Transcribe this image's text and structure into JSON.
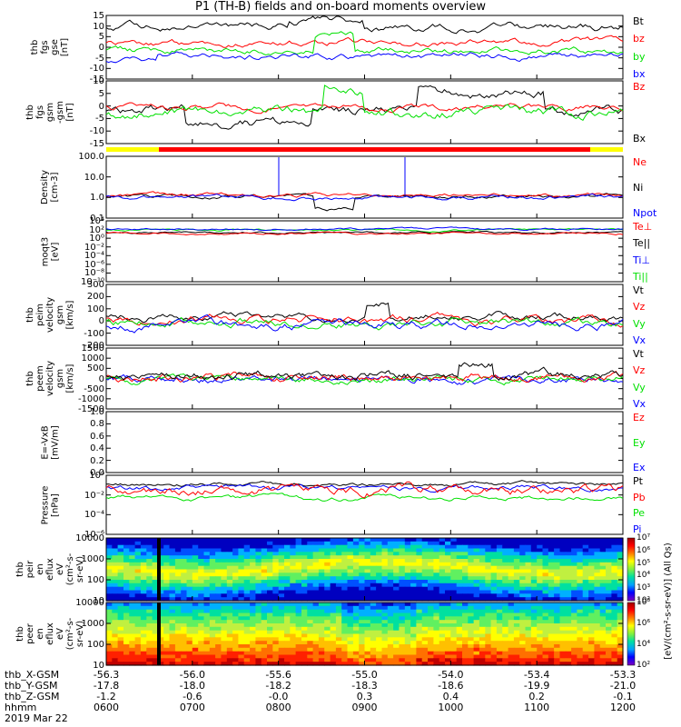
{
  "title": "P1 (TH-B) fields and on-board moments overview",
  "date": "2019 Mar 22",
  "colors": {
    "black": "#000000",
    "red": "#ff0000",
    "green": "#00e000",
    "blue": "#0000ff",
    "yellow": "#ffff00"
  },
  "panels": [
    {
      "id": "fgs-gse",
      "ylabel": [
        "thb",
        "fgs",
        "gse",
        "[nT]"
      ],
      "ticks": [
        "15",
        "10",
        "5",
        "0",
        "-5",
        "-10",
        "-15"
      ],
      "legend": [
        {
          "text": "Bt",
          "color": "#000000"
        },
        {
          "text": "bz",
          "color": "#ff0000"
        },
        {
          "text": "by",
          "color": "#00e000"
        },
        {
          "text": "bx",
          "color": "#0000ff"
        }
      ]
    },
    {
      "id": "fgs-gsm",
      "ylabel": [
        "thb",
        "fgs",
        "gsm",
        "-gsm",
        "[nT]"
      ],
      "ticks": [
        "10",
        "5",
        "0",
        "-5",
        "-10",
        "-15"
      ],
      "legend": [
        {
          "text": "Bz",
          "color": "#ff0000"
        },
        {
          "text": "Bx",
          "color": "#000000"
        }
      ]
    },
    {
      "id": "density",
      "ylabel": [
        "Density",
        "[cm-3]"
      ],
      "ticks": [
        "100.0",
        "10.0",
        "1.0",
        "0.1"
      ],
      "legend": [
        {
          "text": "Ne",
          "color": "#ff0000"
        },
        {
          "text": "Ni",
          "color": "#000000"
        },
        {
          "text": "Npot",
          "color": "#0000ff"
        }
      ]
    },
    {
      "id": "temp",
      "ylabel": [
        "moqt3",
        "[eV]"
      ],
      "ticks": [
        "10⁴",
        "10²",
        "10⁰",
        "10⁻²",
        "10⁻⁴",
        "10⁻⁶",
        "10⁻⁸",
        "10⁻¹⁰"
      ],
      "legend": [
        {
          "text": "Te⊥",
          "color": "#ff0000"
        },
        {
          "text": "Te||",
          "color": "#000000"
        },
        {
          "text": "Ti⊥",
          "color": "#0000ff"
        },
        {
          "text": "Ti||",
          "color": "#00e000"
        }
      ]
    },
    {
      "id": "peim",
      "ylabel": [
        "thb",
        "peim",
        "velocity",
        "gsm",
        "[km/s]"
      ],
      "ticks": [
        "300",
        "200",
        "100",
        "0",
        "-100",
        "-200"
      ],
      "legend": [
        {
          "text": "Vt",
          "color": "#000000"
        },
        {
          "text": "Vz",
          "color": "#ff0000"
        },
        {
          "text": "Vy",
          "color": "#00e000"
        },
        {
          "text": "Vx",
          "color": "#0000ff"
        }
      ]
    },
    {
      "id": "peem",
      "ylabel": [
        "thb",
        "peem",
        "velocity",
        "gsm",
        "[km/s]"
      ],
      "ticks": [
        "1500",
        "1000",
        "500",
        "0",
        "-500",
        "-1000",
        "-1500"
      ],
      "legend": [
        {
          "text": "Vt",
          "color": "#000000"
        },
        {
          "text": "Vz",
          "color": "#ff0000"
        },
        {
          "text": "Vy",
          "color": "#00e000"
        },
        {
          "text": "Vx",
          "color": "#0000ff"
        }
      ]
    },
    {
      "id": "efield",
      "ylabel": [
        "E=-VxB",
        "[mV/m]"
      ],
      "ticks": [
        "1.0",
        "0.8",
        "0.6",
        "0.4",
        "0.2",
        "0.0"
      ],
      "legend": [
        {
          "text": "Ez",
          "color": "#ff0000"
        },
        {
          "text": "Ey",
          "color": "#00e000"
        },
        {
          "text": "Ex",
          "color": "#0000ff"
        }
      ]
    },
    {
      "id": "pressure",
      "ylabel": [
        "Pressure",
        "[nPa]"
      ],
      "ticks": [
        "10⁰",
        "10⁻²",
        "10⁻⁴",
        "10⁻⁶"
      ],
      "legend": [
        {
          "text": "Pt",
          "color": "#000000"
        },
        {
          "text": "Pb",
          "color": "#ff0000"
        },
        {
          "text": "Pe",
          "color": "#00e000"
        },
        {
          "text": "Pi",
          "color": "#0000ff"
        }
      ]
    },
    {
      "id": "peir",
      "ylabel": [
        "thb",
        "peir",
        "en",
        "eflux",
        "eV",
        "(cm²-s-",
        "sr-eV)"
      ],
      "ticks": [
        "10000",
        "1000",
        "100",
        "10"
      ],
      "legend": []
    },
    {
      "id": "peer",
      "ylabel": [
        "thb",
        "peer",
        "en",
        "eflux",
        "eV",
        "(cm²-s-",
        "sr-eV)"
      ],
      "ticks": [
        "10000",
        "1000",
        "100",
        "10"
      ],
      "legend": []
    }
  ],
  "colorbars": [
    {
      "ticks": [
        "10⁷",
        "10⁶",
        "10⁵",
        "10⁴",
        "10³",
        "10²"
      ]
    },
    {
      "ticks": [
        "10⁸",
        "10⁶",
        "10⁴",
        "10²"
      ]
    }
  ],
  "colorbar_label": "[eV/(cm²-s-sr-eV)] (All Qs)",
  "xaxis": {
    "row_labels": [
      "thb_X-GSM",
      "thb_Y-GSM",
      "thb_Z-GSM",
      "hhmm"
    ],
    "columns": [
      [
        "-56.3",
        "-17.8",
        "-1.2",
        "0600"
      ],
      [
        "-56.0",
        "-18.0",
        "-0.6",
        "0700"
      ],
      [
        "-55.6",
        "-18.2",
        "-0.0",
        "0800"
      ],
      [
        "-55.0",
        "-18.3",
        "0.3",
        "0900"
      ],
      [
        "-54.0",
        "-18.6",
        "0.4",
        "1000"
      ],
      [
        "-53.4",
        "-19.9",
        "0.2",
        "1100"
      ],
      [
        "-53.3",
        "-21.0",
        "-0.1",
        "1200"
      ]
    ]
  },
  "chart_data": {
    "type": "line",
    "title": "P1 (TH-B) fields and on-board moments overview",
    "x": [
      "0600",
      "0700",
      "0800",
      "0900",
      "1000",
      "1100",
      "1200"
    ],
    "xlabel": "hhmm",
    "series": [
      {
        "name": "Bt",
        "values": [
          7,
          8,
          9,
          8,
          10,
          9,
          6
        ]
      },
      {
        "name": "bz",
        "values": [
          2,
          3,
          1,
          0,
          2,
          1,
          3
        ]
      },
      {
        "name": "by",
        "values": [
          -1,
          -2,
          0,
          8,
          -1,
          0,
          1
        ]
      },
      {
        "name": "bx",
        "values": [
          -6,
          -3,
          -2,
          -3,
          -1,
          -1,
          -2
        ]
      },
      {
        "name": "Ni",
        "values": [
          0.4,
          0.3,
          0.3,
          0.08,
          0.3,
          0.2,
          0.5
        ]
      },
      {
        "name": "Vt",
        "values": [
          50,
          60,
          70,
          120,
          60,
          80,
          90
        ]
      }
    ]
  }
}
